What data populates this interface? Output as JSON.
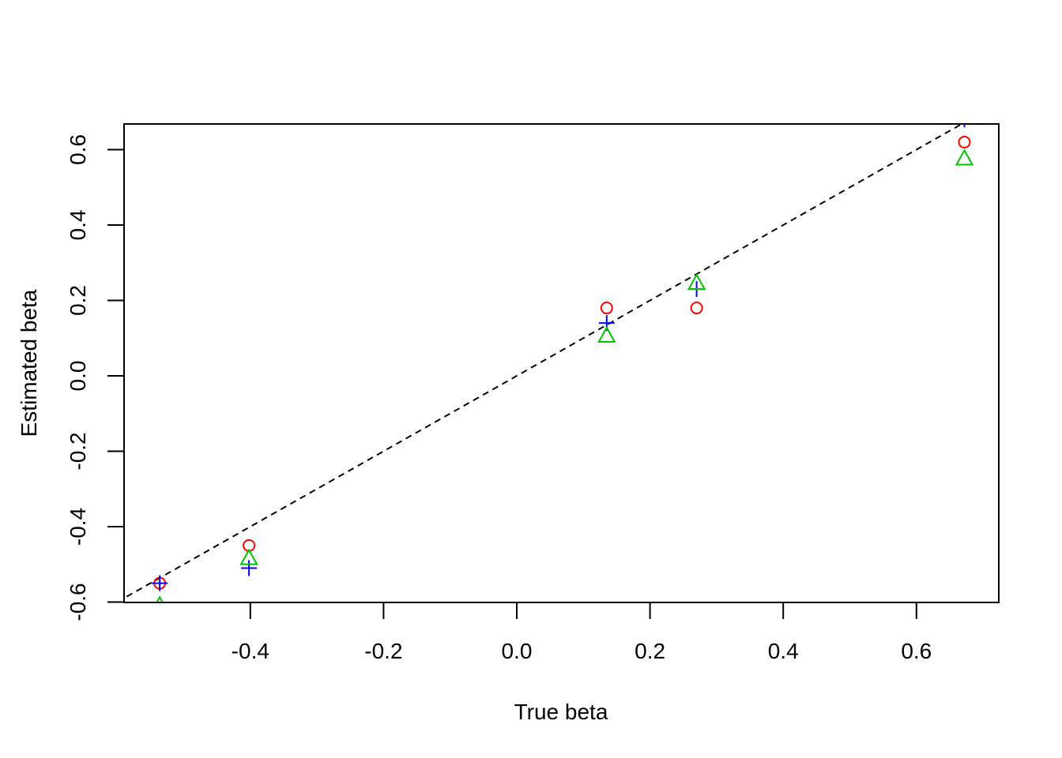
{
  "chart_data": {
    "type": "scatter",
    "title": "",
    "xlabel": "True beta",
    "ylabel": "Estimated beta",
    "xlim": [
      -0.6,
      0.72
    ],
    "ylim": [
      -0.6,
      0.67
    ],
    "xticks": [
      -0.4,
      -0.2,
      0.0,
      0.2,
      0.4,
      0.6
    ],
    "xtick_labels": [
      "-0.4",
      "-0.2",
      "0.0",
      "0.2",
      "0.4",
      "0.6"
    ],
    "yticks": [
      -0.6,
      -0.4,
      -0.2,
      0.0,
      0.2,
      0.4,
      0.6
    ],
    "ytick_labels": [
      "-0.6",
      "-0.4",
      "-0.2",
      "0.0",
      "0.2",
      "0.4",
      "0.6"
    ],
    "grid": false,
    "legend": "none",
    "reference_line": {
      "slope": 1,
      "intercept": 0,
      "style": "dashed",
      "color": "#000000"
    },
    "series": [
      {
        "marker": "circle",
        "color": "#ff0000",
        "x": [
          -0.536,
          -0.402,
          0.135,
          0.27,
          0.672
        ],
        "y": [
          -0.55,
          -0.45,
          0.18,
          0.18,
          0.62
        ]
      },
      {
        "marker": "plus",
        "color": "#0000ff",
        "x": [
          -0.536,
          -0.402,
          0.135,
          0.27,
          0.672
        ],
        "y": [
          -0.55,
          -0.51,
          0.14,
          0.23,
          0.68
        ]
      },
      {
        "marker": "triangle",
        "color": "#00c000",
        "x": [
          -0.536,
          -0.402,
          0.135,
          0.27,
          0.672
        ],
        "y": [
          -0.61,
          -0.485,
          0.105,
          0.245,
          0.575
        ]
      }
    ]
  }
}
